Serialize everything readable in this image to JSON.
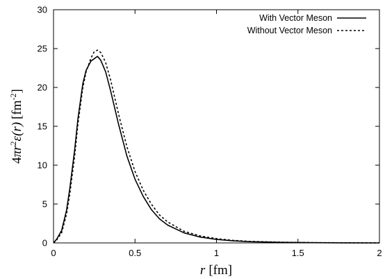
{
  "chart_data": {
    "type": "line",
    "xlabel_var": "r",
    "xlabel_unit": "[fm]",
    "ylabel_prefix": "4",
    "ylabel_pi": "π",
    "ylabel_r": "r",
    "ylabel_sup": "2",
    "ylabel_eps": "ε",
    "ylabel_arg": "(r)",
    "ylabel_unit_open": "[fm",
    "ylabel_unit_sup": "-2",
    "ylabel_unit_close": "]",
    "xlim": [
      0,
      2
    ],
    "ylim": [
      0,
      30
    ],
    "xticks": [
      "0",
      "0.5",
      "1",
      "1.5",
      "2"
    ],
    "xtick_values": [
      0,
      0.5,
      1,
      1.5,
      2
    ],
    "yticks": [
      "0",
      "5",
      "10",
      "15",
      "20",
      "25",
      "30"
    ],
    "ytick_values": [
      0,
      5,
      10,
      15,
      20,
      25,
      30
    ],
    "grid": false,
    "legend_position": "top-right",
    "series": [
      {
        "name": "With Vector Meson",
        "style": "solid",
        "color": "#000000",
        "x": [
          0,
          0.02,
          0.05,
          0.08,
          0.1,
          0.13,
          0.15,
          0.18,
          0.2,
          0.23,
          0.25,
          0.27,
          0.29,
          0.32,
          0.35,
          0.4,
          0.45,
          0.5,
          0.55,
          0.6,
          0.65,
          0.7,
          0.8,
          0.9,
          1.0,
          1.1,
          1.2,
          1.4,
          1.6,
          1.8,
          2.0
        ],
        "y": [
          0,
          0.5,
          1.6,
          4.2,
          7.0,
          12.0,
          16.0,
          20.5,
          22.2,
          23.4,
          23.7,
          24.0,
          23.5,
          22.0,
          19.6,
          15.2,
          11.2,
          8.2,
          6.0,
          4.3,
          3.1,
          2.3,
          1.3,
          0.75,
          0.45,
          0.27,
          0.16,
          0.07,
          0.03,
          0.01,
          0.0
        ]
      },
      {
        "name": "Without Vector Meson",
        "style": "dashed",
        "color": "#000000",
        "x": [
          0,
          0.02,
          0.05,
          0.08,
          0.1,
          0.13,
          0.15,
          0.18,
          0.2,
          0.23,
          0.25,
          0.27,
          0.29,
          0.32,
          0.35,
          0.4,
          0.45,
          0.5,
          0.55,
          0.6,
          0.65,
          0.7,
          0.8,
          0.9,
          1.0,
          1.1,
          1.2,
          1.4,
          1.6,
          1.8,
          2.0
        ],
        "y": [
          0,
          0.4,
          1.3,
          3.7,
          6.3,
          11.2,
          15.3,
          20.0,
          22.0,
          23.8,
          24.6,
          24.8,
          24.5,
          23.2,
          21.0,
          16.5,
          12.4,
          9.2,
          6.8,
          5.0,
          3.6,
          2.7,
          1.5,
          0.9,
          0.55,
          0.33,
          0.2,
          0.09,
          0.04,
          0.015,
          0.0
        ]
      }
    ]
  }
}
